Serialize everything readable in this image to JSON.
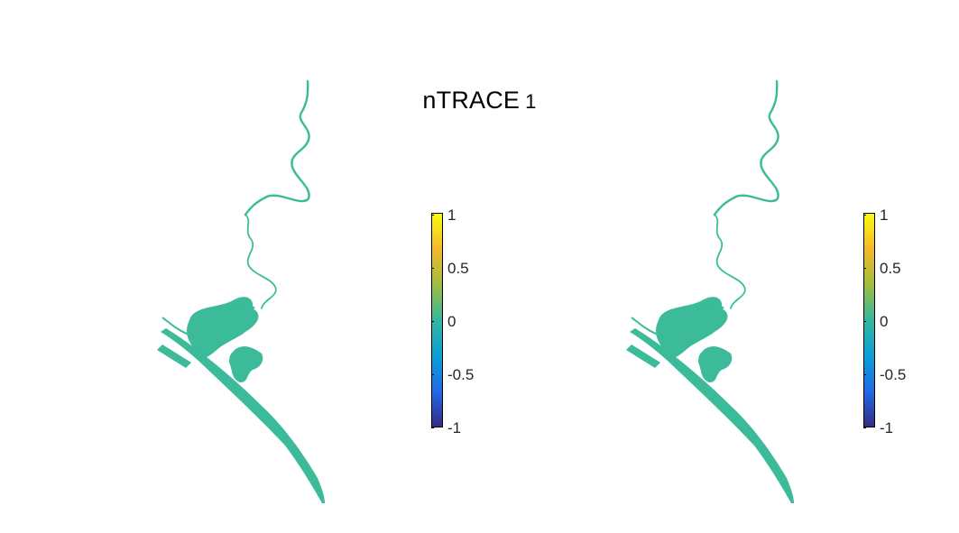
{
  "figure": {
    "title_main": "nTRACE",
    "title_sub": "1"
  },
  "chart_data": [
    {
      "type": "heatmap",
      "title": "",
      "panel": "left",
      "field_value": 0,
      "field_color": "#3bbb9a",
      "colorbar": {
        "range": [
          -1,
          1
        ],
        "ticks": [
          "1",
          "0.5",
          "0",
          "-0.5",
          "-1"
        ],
        "colormap": "parula",
        "stops": [
          "#f9fb0e",
          "#f5b82a",
          "#9fbd3f",
          "#33b7a0",
          "#0ba0d6",
          "#1f6ae6",
          "#352a87"
        ]
      }
    },
    {
      "type": "heatmap",
      "title": "",
      "panel": "right",
      "field_value": 0,
      "field_color": "#3bbb9a",
      "colorbar": {
        "range": [
          -1,
          1
        ],
        "ticks": [
          "1",
          "0.5",
          "0",
          "-0.5",
          "-1"
        ],
        "colormap": "parula",
        "stops": [
          "#f9fb0e",
          "#f5b82a",
          "#9fbd3f",
          "#33b7a0",
          "#0ba0d6",
          "#1f6ae6",
          "#352a87"
        ]
      }
    }
  ]
}
